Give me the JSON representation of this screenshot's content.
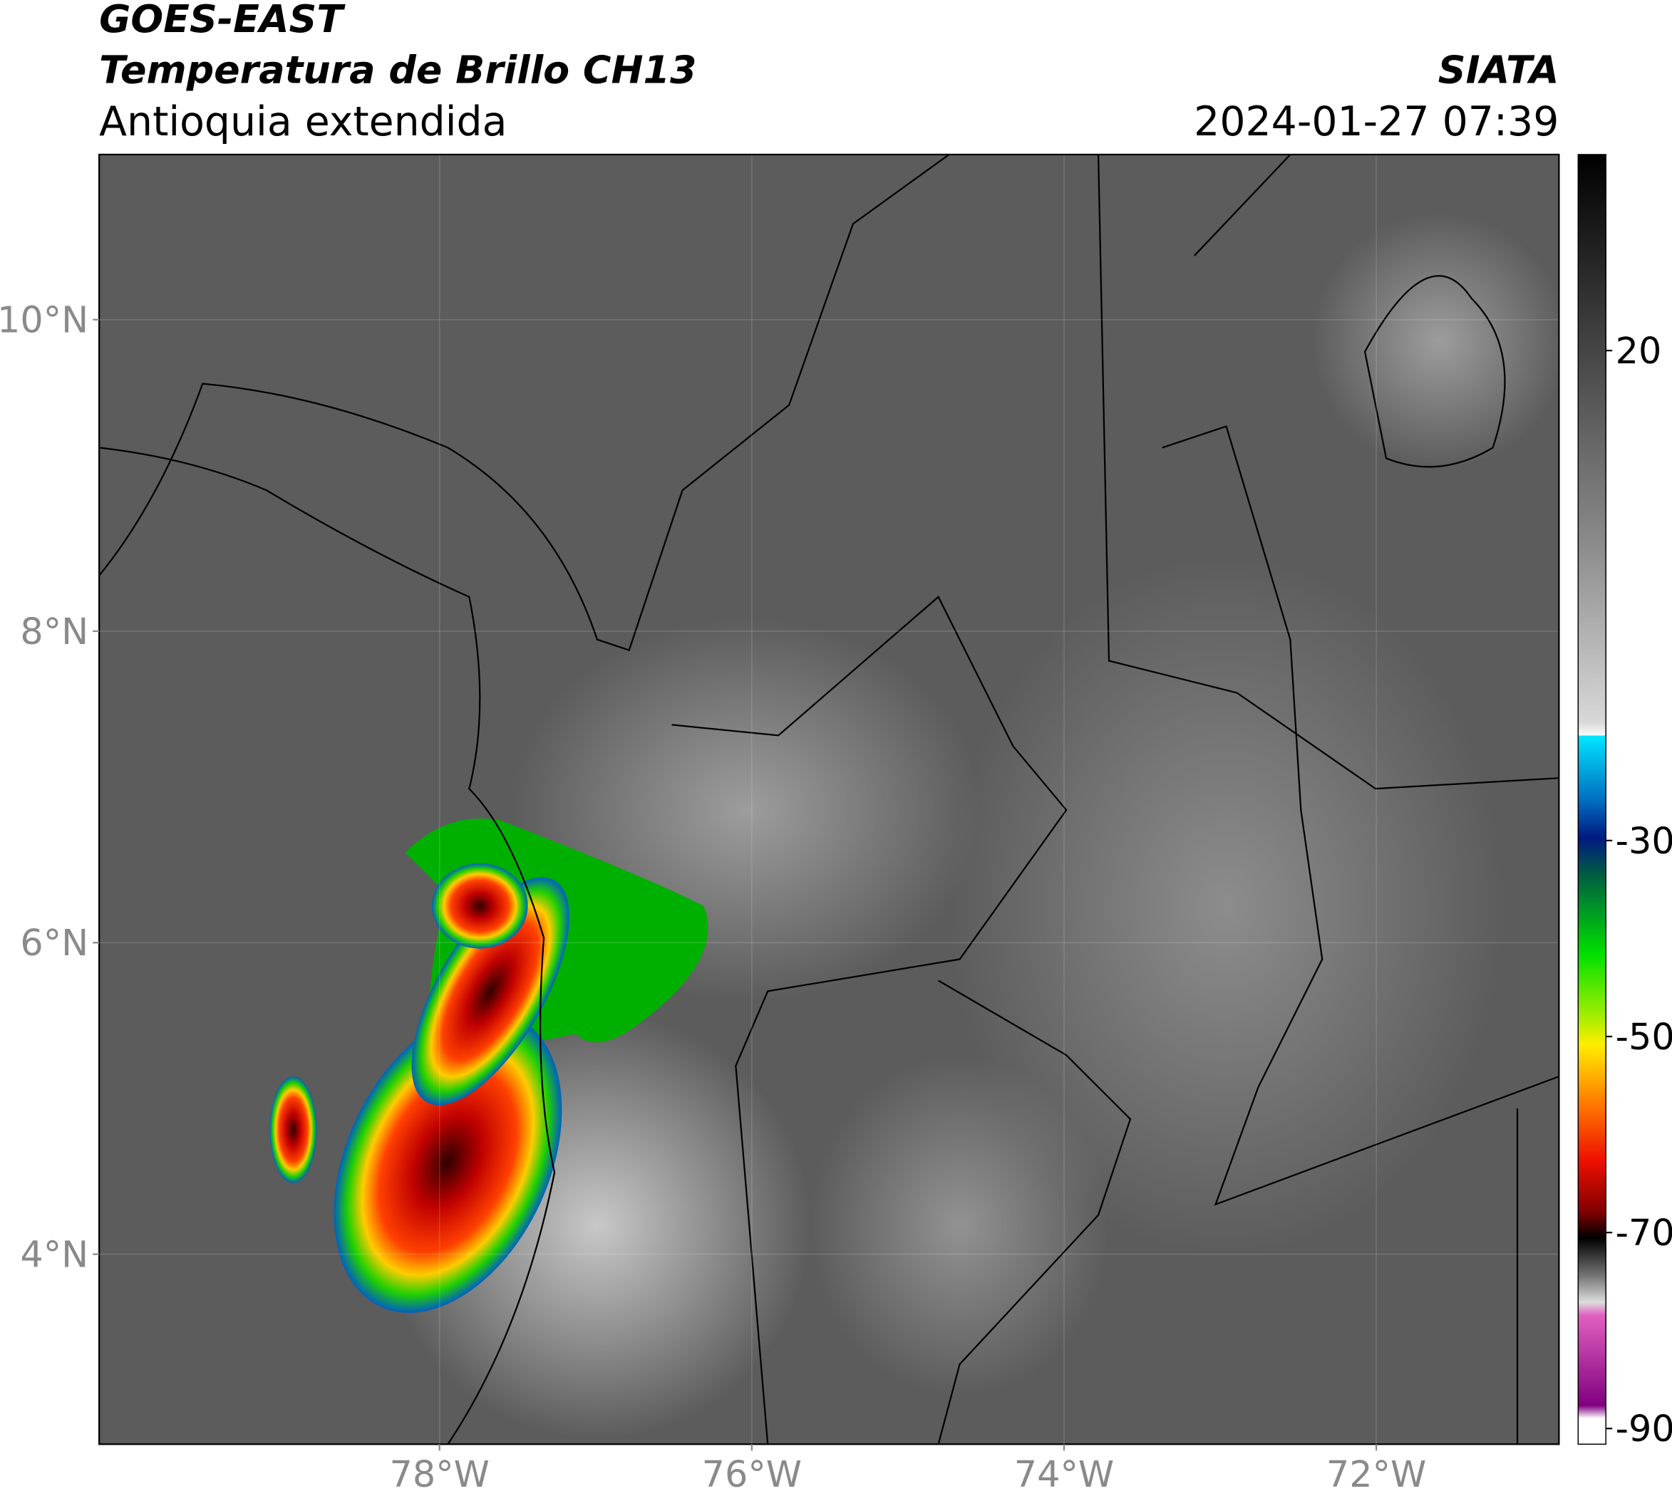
{
  "header": {
    "satellite": "GOES-EAST",
    "product": "Temperatura de Brillo CH13",
    "region": "Antioquia extendida",
    "source": "SIATA",
    "datetime": "2024-01-27 07:39"
  },
  "map": {
    "lonlim": [
      -80.18,
      -70.83
    ],
    "latlim": [
      2.78,
      11.06
    ],
    "xticks": [
      {
        "value": -78,
        "label": "78°W"
      },
      {
        "value": -76,
        "label": "76°W"
      },
      {
        "value": -74,
        "label": "74°W"
      },
      {
        "value": -72,
        "label": "72°W"
      }
    ],
    "yticks": [
      {
        "value": 10,
        "label": "10°N"
      },
      {
        "value": 8,
        "label": "8°N"
      },
      {
        "value": 6,
        "label": "6°N"
      },
      {
        "value": 4,
        "label": "4°N"
      }
    ]
  },
  "colorbar": {
    "clim": [
      40,
      -91.6
    ],
    "ticks": [
      20,
      -30,
      -50,
      -70,
      -90
    ]
  }
}
